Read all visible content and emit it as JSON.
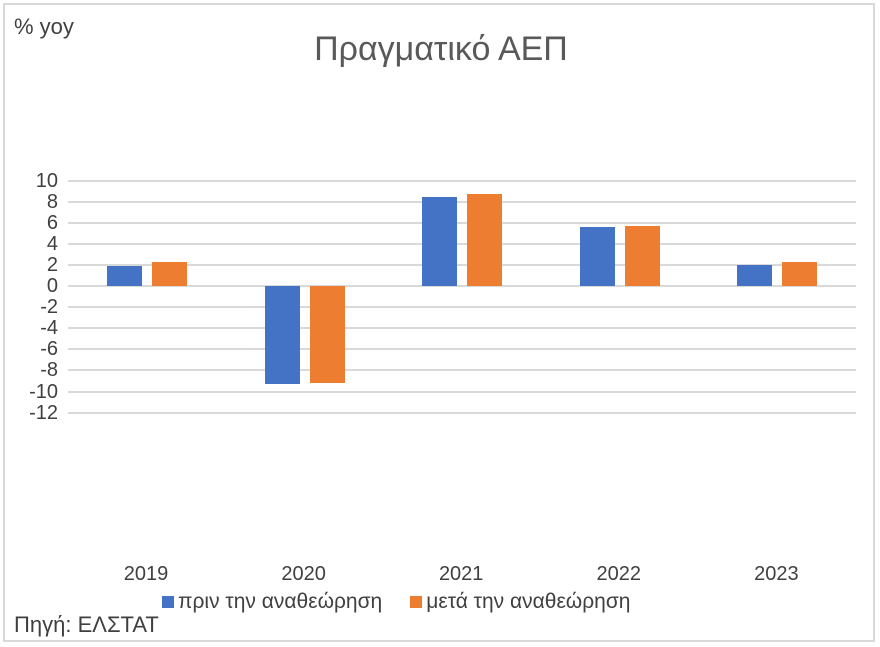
{
  "chart_data": {
    "type": "bar",
    "title": "Πραγματικό ΑΕΠ",
    "xlabel": "",
    "ylabel": "% yoy",
    "categories": [
      "2019",
      "2020",
      "2021",
      "2022",
      "2023"
    ],
    "series": [
      {
        "name": "πριν την αναθεώρηση",
        "color": "#4472c4",
        "values": [
          1.9,
          -9.3,
          8.4,
          5.6,
          2.0
        ]
      },
      {
        "name": "μετά την αναθεώρηση",
        "color": "#ed7d31",
        "values": [
          2.3,
          -9.2,
          8.7,
          5.7,
          2.3
        ]
      }
    ],
    "ylim": [
      -12,
      10
    ],
    "yticks": [
      "10",
      "8",
      "6",
      "4",
      "2",
      "0",
      "-2",
      "-4",
      "-6",
      "-8",
      "-10",
      "-12"
    ],
    "grid": true,
    "legend_position": "bottom"
  },
  "source": "Πηγή: ΕΛΣΤΑΤ"
}
